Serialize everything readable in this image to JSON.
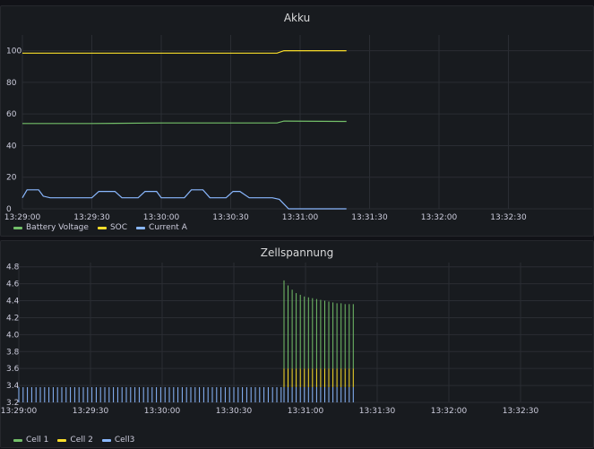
{
  "panels": [
    {
      "title": "Akku",
      "legend": [
        {
          "label": "Battery Voltage",
          "color": "#73bf69"
        },
        {
          "label": "SOC",
          "color": "#fade2a"
        },
        {
          "label": "Current A",
          "color": "#8ab8ff"
        }
      ]
    },
    {
      "title": "Zellspannung",
      "legend": [
        {
          "label": "Cell 1",
          "color": "#73bf69"
        },
        {
          "label": "Cell 2",
          "color": "#fade2a"
        },
        {
          "label": "Cell3",
          "color": "#8ab8ff"
        }
      ]
    }
  ],
  "chart_data": [
    {
      "type": "line",
      "title": "Akku",
      "x_ticks": [
        "13:29:00",
        "13:29:30",
        "13:30:00",
        "13:30:30",
        "13:31:00",
        "13:31:30",
        "13:32:00",
        "13:32:30"
      ],
      "y_ticks": [
        0,
        20,
        40,
        60,
        80,
        100
      ],
      "ylim": [
        0,
        110
      ],
      "grid": true,
      "legend_position": "bottom-left",
      "series": [
        {
          "name": "Battery Voltage",
          "color": "#73bf69",
          "x": [
            "13:29:00",
            "13:29:30",
            "13:30:00",
            "13:30:30",
            "13:30:50",
            "13:30:53",
            "13:31:20"
          ],
          "y": [
            54,
            54,
            54.3,
            54.3,
            54.3,
            55.5,
            55.3
          ]
        },
        {
          "name": "SOC",
          "color": "#fade2a",
          "x": [
            "13:29:00",
            "13:30:50",
            "13:30:53",
            "13:31:20"
          ],
          "y": [
            98.5,
            98.5,
            100,
            100
          ]
        },
        {
          "name": "Current A",
          "color": "#8ab8ff",
          "x": [
            "13:29:00",
            "13:29:02",
            "13:29:07",
            "13:29:09",
            "13:29:12",
            "13:29:30",
            "13:29:33",
            "13:29:40",
            "13:29:43",
            "13:29:50",
            "13:29:53",
            "13:29:58",
            "13:30:00",
            "13:30:10",
            "13:30:13",
            "13:30:18",
            "13:30:21",
            "13:30:28",
            "13:30:31",
            "13:30:34",
            "13:30:38",
            "13:30:48",
            "13:30:51",
            "13:30:55",
            "13:31:20"
          ],
          "y": [
            7,
            12,
            12,
            8,
            7,
            7,
            11,
            11,
            7,
            7,
            11,
            11,
            7,
            7,
            12,
            12,
            7,
            7,
            11,
            11,
            7,
            7,
            6,
            0,
            0
          ]
        }
      ]
    },
    {
      "type": "bar",
      "title": "Zellspannung",
      "x_ticks": [
        "13:29:00",
        "13:29:30",
        "13:30:00",
        "13:30:30",
        "13:31:00",
        "13:31:30",
        "13:32:00",
        "13:32:30"
      ],
      "y_ticks": [
        3.2,
        3.4,
        3.6,
        3.8,
        4.0,
        4.2,
        4.4,
        4.6,
        4.8
      ],
      "ylim": [
        3.2,
        4.85
      ],
      "grid": true,
      "legend_position": "bottom-left",
      "series": [
        {
          "name": "Cell 1",
          "color": "#73bf69",
          "x_start": "13:29:00",
          "x_end": "13:31:20",
          "values_before": 3.38,
          "switch_at": "13:30:51",
          "values_after": [
            4.64,
            4.58,
            4.53,
            4.49,
            4.47,
            4.45,
            4.44,
            4.43,
            4.42,
            4.41,
            4.4,
            4.39,
            4.38,
            4.37,
            4.37,
            4.36,
            4.36,
            4.36
          ]
        },
        {
          "name": "Cell 2",
          "color": "#fade2a",
          "x_start": "13:29:00",
          "x_end": "13:31:20",
          "values_before": 3.38,
          "switch_at": "13:30:51",
          "value_after": 3.6
        },
        {
          "name": "Cell3",
          "color": "#8ab8ff",
          "x_start": "13:29:00",
          "x_end": "13:31:20",
          "value": 3.38
        }
      ]
    }
  ]
}
